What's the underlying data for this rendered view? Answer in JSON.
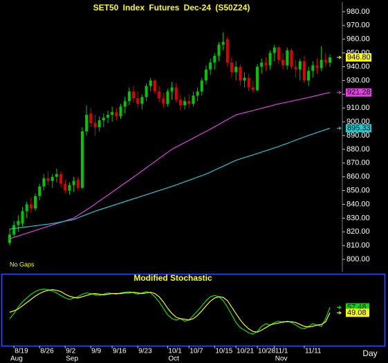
{
  "chart_data": [
    {
      "type": "candlestick",
      "title": "SET50 Index Futures Dec-24 (S50Z24)",
      "note": "No Gaps",
      "up_color": "#00c800",
      "down_color": "#e00000",
      "open": [
        812,
        818,
        825,
        826,
        835,
        840,
        837,
        846,
        853,
        859,
        857,
        860,
        862,
        855,
        850,
        854,
        858,
        852,
        893,
        906,
        899,
        896,
        901,
        903,
        905,
        907,
        904,
        911,
        915,
        922,
        917,
        913,
        918,
        926,
        930,
        922,
        917,
        913,
        922,
        925,
        916,
        912,
        915,
        913,
        919,
        922,
        930,
        938,
        943,
        948,
        956,
        960,
        943,
        936,
        940,
        930,
        932,
        925,
        923,
        940,
        943,
        941,
        950,
        954,
        945,
        941,
        952,
        940,
        938,
        944,
        930,
        937,
        941,
        939,
        945,
        943
      ],
      "high": [
        822,
        828,
        832,
        838,
        842,
        845,
        848,
        855,
        862,
        864,
        862,
        866,
        864,
        858,
        856,
        860,
        860,
        896,
        912,
        910,
        905,
        904,
        906,
        908,
        911,
        910,
        913,
        918,
        925,
        926,
        922,
        920,
        928,
        932,
        931,
        926,
        921,
        924,
        929,
        928,
        920,
        918,
        920,
        922,
        925,
        932,
        941,
        946,
        950,
        958,
        965,
        962,
        947,
        944,
        942,
        936,
        935,
        930,
        942,
        946,
        947,
        952,
        956,
        955,
        950,
        954,
        953,
        945,
        946,
        948,
        940,
        944,
        946,
        955,
        950,
        949
      ],
      "low": [
        810,
        816,
        820,
        824,
        830,
        834,
        835,
        843,
        850,
        854,
        852,
        856,
        852,
        848,
        847,
        849,
        850,
        851,
        890,
        896,
        890,
        893,
        896,
        899,
        900,
        901,
        902,
        906,
        912,
        914,
        910,
        909,
        915,
        922,
        920,
        914,
        910,
        911,
        916,
        914,
        908,
        909,
        910,
        911,
        915,
        919,
        927,
        934,
        938,
        944,
        952,
        940,
        932,
        930,
        926,
        925,
        922,
        921,
        922,
        935,
        937,
        938,
        944,
        942,
        938,
        938,
        938,
        932,
        930,
        928,
        926,
        932,
        935,
        937,
        940,
        940
      ],
      "close": [
        818,
        825,
        828,
        835,
        840,
        837,
        846,
        853,
        859,
        857,
        860,
        862,
        855,
        850,
        854,
        857,
        852,
        893,
        905,
        899,
        896,
        901,
        903,
        905,
        907,
        904,
        911,
        915,
        922,
        917,
        913,
        918,
        926,
        930,
        922,
        917,
        913,
        922,
        925,
        916,
        912,
        915,
        913,
        919,
        922,
        930,
        938,
        943,
        948,
        956,
        958,
        943,
        936,
        940,
        930,
        932,
        925,
        923,
        940,
        943,
        941,
        950,
        954,
        945,
        941,
        952,
        940,
        938,
        944,
        930,
        937,
        941,
        939,
        945,
        943,
        946.8
      ],
      "value_labels": [
        null,
        null,
        null,
        null,
        null,
        null,
        null,
        null,
        null,
        null,
        null,
        null,
        null,
        null,
        null,
        null,
        null,
        null,
        null,
        null,
        null,
        null,
        null,
        null,
        null,
        null,
        null,
        null,
        null,
        null,
        null,
        null,
        null,
        null,
        null,
        null,
        null,
        null,
        null,
        null,
        null,
        null,
        null,
        null,
        null,
        null,
        null,
        null,
        null,
        null,
        null,
        null,
        null,
        null,
        null,
        null,
        null,
        null,
        null,
        null,
        null,
        null,
        null,
        null,
        null,
        null,
        null,
        null,
        null,
        null,
        null,
        null,
        null,
        null,
        null,
        "946.80"
      ],
      "label_color": "#ffff00",
      "lines": [
        {
          "color": "#e040e0",
          "values": [
            815,
            816,
            817,
            818,
            819,
            820,
            821,
            822,
            823,
            824,
            825,
            826,
            827,
            828,
            829,
            830,
            832,
            834,
            836,
            838,
            840.2,
            842.4,
            844.5,
            846.7,
            848.9,
            851,
            853.3,
            855.5,
            857.6,
            859.8,
            862,
            864.3,
            866.5,
            868.8,
            871,
            873.3,
            875.5,
            877.8,
            880,
            881.6,
            883.3,
            884.9,
            886.5,
            888.1,
            889.8,
            891.4,
            893,
            894.7,
            896.4,
            898.1,
            899.9,
            901.6,
            903.3,
            905,
            905.8,
            906.6,
            907.4,
            908.2,
            909,
            909.8,
            910.6,
            911.4,
            912.2,
            913,
            913.7,
            914.3,
            915,
            915.7,
            916.3,
            917,
            917.7,
            918.4,
            919.1,
            919.9,
            920.6,
            921.28
          ]
        },
        {
          "color": "#20c8d0",
          "values": [
            822,
            822.4,
            822.8,
            823.2,
            823.6,
            824,
            824.4,
            824.8,
            825.2,
            825.6,
            826,
            826.6,
            827.2,
            827.8,
            828.4,
            829,
            830.2,
            831.4,
            832.6,
            833.8,
            835,
            836,
            837,
            838,
            839,
            840,
            841,
            842,
            843,
            844,
            845,
            846,
            847,
            848,
            849,
            850,
            851,
            852,
            853,
            854.1,
            855.3,
            856.4,
            857.5,
            858.6,
            859.8,
            860.9,
            862,
            863.4,
            864.9,
            866.3,
            867.7,
            869.1,
            870.6,
            872,
            873,
            874,
            875,
            876,
            877,
            878,
            879,
            880,
            881,
            882,
            883.2,
            884.3,
            885.5,
            886.7,
            887.8,
            889,
            890.1,
            891.1,
            892.2,
            893.2,
            894.3,
            895.33
          ]
        }
      ],
      "ylim": [
        791,
        987
      ],
      "yticks": [
        {
          "value": 800,
          "label": "800.00"
        },
        {
          "value": 810,
          "label": "810.00"
        },
        {
          "value": 820,
          "label": "820.00"
        },
        {
          "value": 830,
          "label": "830.00"
        },
        {
          "value": 840,
          "label": "840.00"
        },
        {
          "value": 850,
          "label": "850.00"
        },
        {
          "value": 860,
          "label": "860.00"
        },
        {
          "value": 870,
          "label": "870.00"
        },
        {
          "value": 880,
          "label": "880.00"
        },
        {
          "value": 890,
          "label": "890.00"
        },
        {
          "value": 900,
          "label": "900.00"
        },
        {
          "value": 910,
          "label": "910.00"
        },
        {
          "value": 920,
          "label": "920.00"
        },
        {
          "value": 930,
          "label": "930.00"
        },
        {
          "value": 940,
          "label": "940.00"
        },
        {
          "value": 950,
          "label": "950.00"
        },
        {
          "value": 960,
          "label": "960.00"
        },
        {
          "value": 970,
          "label": "970.00"
        },
        {
          "value": 980,
          "label": "980.00"
        }
      ]
    },
    {
      "type": "line",
      "title": "Modified Stochastic",
      "x_label": "Day",
      "categories": [
        null,
        "8/19",
        null,
        null,
        null,
        null,
        null,
        "8/26",
        null,
        null,
        null,
        null,
        null,
        "9/2",
        null,
        null,
        null,
        null,
        null,
        "9/9",
        null,
        null,
        null,
        null,
        "9/16",
        null,
        null,
        null,
        null,
        null,
        "9/23",
        null,
        null,
        null,
        null,
        null,
        null,
        "10/1",
        null,
        null,
        null,
        null,
        "10/7",
        null,
        null,
        null,
        null,
        null,
        "10/15",
        null,
        null,
        null,
        null,
        "10/21",
        null,
        null,
        null,
        null,
        "10/28",
        null,
        null,
        null,
        "11/1",
        null,
        null,
        null,
        null,
        null,
        null,
        "11/11",
        null,
        null,
        null,
        null,
        null,
        null
      ],
      "months": [
        "Aug",
        null,
        null,
        null,
        null,
        null,
        null,
        null,
        null,
        null,
        null,
        null,
        null,
        "Sep",
        null,
        null,
        null,
        null,
        null,
        null,
        null,
        null,
        null,
        null,
        null,
        null,
        null,
        null,
        null,
        null,
        null,
        null,
        null,
        null,
        null,
        null,
        null,
        "Oct",
        null,
        null,
        null,
        null,
        null,
        null,
        null,
        null,
        null,
        null,
        null,
        null,
        null,
        null,
        null,
        null,
        null,
        null,
        null,
        null,
        null,
        null,
        null,
        null,
        "Nov",
        null,
        null,
        null,
        null,
        null,
        null,
        null,
        null,
        null,
        null,
        null,
        null,
        null
      ],
      "ylim": [
        0,
        100
      ],
      "series": [
        {
          "color": "#00e000",
          "values": [
            40,
            48,
            58,
            66,
            72,
            78,
            82,
            85,
            86,
            85,
            83,
            80,
            76,
            72,
            70,
            72,
            74,
            78,
            80,
            79,
            77,
            76,
            78,
            80,
            79,
            78,
            80,
            81,
            82,
            80,
            78,
            80,
            82,
            80,
            74,
            66,
            56,
            46,
            40,
            38,
            40,
            36,
            38,
            45,
            52,
            60,
            68,
            74,
            76,
            74,
            68,
            58,
            46,
            34,
            26,
            22,
            18,
            16,
            20,
            28,
            32,
            30,
            34,
            36,
            34,
            36,
            34,
            30,
            26,
            24,
            28,
            32,
            30,
            28,
            40,
            57.48
          ]
        },
        {
          "color": "#ffff00",
          "values": [
            50,
            52,
            55,
            60,
            65,
            70,
            75,
            79,
            82,
            84,
            85,
            84,
            82,
            78,
            75,
            73,
            72,
            74,
            76,
            78,
            79,
            78,
            77,
            78,
            79,
            79,
            79,
            80,
            80,
            81,
            80,
            79,
            80,
            81,
            79,
            74,
            66,
            56,
            48,
            42,
            40,
            39,
            38,
            40,
            45,
            52,
            60,
            67,
            72,
            74,
            73,
            68,
            58,
            48,
            38,
            30,
            24,
            20,
            19,
            22,
            26,
            30,
            32,
            33,
            35,
            35,
            35,
            34,
            31,
            28,
            27,
            28,
            30,
            31,
            35,
            49.08
          ]
        }
      ]
    }
  ]
}
